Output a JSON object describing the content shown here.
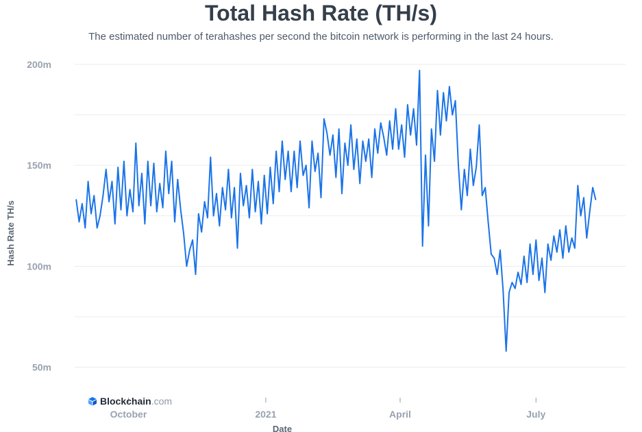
{
  "header": {
    "title": "Total Hash Rate (TH/s)",
    "subtitle": "The estimated number of terahashes per second the bitcoin network is performing in the last 24 hours."
  },
  "brand": {
    "name": "Blockchain",
    "suffix": ".com",
    "logo_icon": "blockchain-cube-icon"
  },
  "colors": {
    "line": "#1a73e8",
    "grid": "#e9ecef",
    "tick": "#98a2af"
  },
  "chart_data": {
    "type": "line",
    "title": "Total Hash Rate (TH/s)",
    "xlabel": "Date",
    "ylabel": "Hash Rate TH/s",
    "ylim": [
      40000000,
      203000000
    ],
    "xlim": [
      "2020-08-26",
      "2021-08-30"
    ],
    "y_ticks": [
      {
        "value": 50000000,
        "label": "50m"
      },
      {
        "value": 100000000,
        "label": "100m"
      },
      {
        "value": 150000000,
        "label": "150m"
      },
      {
        "value": 200000000,
        "label": "200m"
      }
    ],
    "x_ticks": [
      {
        "date": "2020-10-01",
        "label": "October"
      },
      {
        "date": "2021-01-01",
        "label": "2021"
      },
      {
        "date": "2021-04-01",
        "label": "April"
      },
      {
        "date": "2021-07-01",
        "label": "July"
      }
    ],
    "grid": true,
    "legend": "none",
    "series": [
      {
        "values": [
          [
            "2020-08-27",
            133
          ],
          [
            "2020-08-29",
            122
          ],
          [
            "2020-08-31",
            131
          ],
          [
            "2020-09-02",
            119
          ],
          [
            "2020-09-04",
            142
          ],
          [
            "2020-09-06",
            126
          ],
          [
            "2020-09-08",
            135
          ],
          [
            "2020-09-10",
            119
          ],
          [
            "2020-09-12",
            125
          ],
          [
            "2020-09-14",
            135
          ],
          [
            "2020-09-16",
            148
          ],
          [
            "2020-09-18",
            132
          ],
          [
            "2020-09-20",
            142
          ],
          [
            "2020-09-22",
            121
          ],
          [
            "2020-09-24",
            149
          ],
          [
            "2020-09-26",
            128
          ],
          [
            "2020-09-28",
            152
          ],
          [
            "2020-09-30",
            125
          ],
          [
            "2020-10-02",
            138
          ],
          [
            "2020-10-04",
            127
          ],
          [
            "2020-10-06",
            161
          ],
          [
            "2020-10-08",
            130
          ],
          [
            "2020-10-10",
            146
          ],
          [
            "2020-10-12",
            121
          ],
          [
            "2020-10-14",
            152
          ],
          [
            "2020-10-16",
            130
          ],
          [
            "2020-10-18",
            151
          ],
          [
            "2020-10-20",
            127
          ],
          [
            "2020-10-22",
            141
          ],
          [
            "2020-10-24",
            129
          ],
          [
            "2020-10-26",
            157
          ],
          [
            "2020-10-28",
            136
          ],
          [
            "2020-10-30",
            152
          ],
          [
            "2020-11-01",
            122
          ],
          [
            "2020-11-03",
            143
          ],
          [
            "2020-11-05",
            128
          ],
          [
            "2020-11-07",
            116
          ],
          [
            "2020-11-09",
            100
          ],
          [
            "2020-11-11",
            108
          ],
          [
            "2020-11-13",
            113
          ],
          [
            "2020-11-15",
            96
          ],
          [
            "2020-11-17",
            126
          ],
          [
            "2020-11-19",
            117
          ],
          [
            "2020-11-21",
            132
          ],
          [
            "2020-11-23",
            124
          ],
          [
            "2020-11-25",
            154
          ],
          [
            "2020-11-27",
            125
          ],
          [
            "2020-11-29",
            136
          ],
          [
            "2020-12-01",
            120
          ],
          [
            "2020-12-03",
            139
          ],
          [
            "2020-12-05",
            128
          ],
          [
            "2020-12-07",
            148
          ],
          [
            "2020-12-09",
            124
          ],
          [
            "2020-12-11",
            139
          ],
          [
            "2020-12-13",
            109
          ],
          [
            "2020-12-15",
            146
          ],
          [
            "2020-12-17",
            130
          ],
          [
            "2020-12-19",
            140
          ],
          [
            "2020-12-21",
            124
          ],
          [
            "2020-12-23",
            148
          ],
          [
            "2020-12-25",
            127
          ],
          [
            "2020-12-27",
            142
          ],
          [
            "2020-12-29",
            121
          ],
          [
            "2020-12-31",
            145
          ],
          [
            "2021-01-02",
            126
          ],
          [
            "2021-01-04",
            149
          ],
          [
            "2021-01-06",
            131
          ],
          [
            "2021-01-08",
            157
          ],
          [
            "2021-01-10",
            137
          ],
          [
            "2021-01-12",
            162
          ],
          [
            "2021-01-14",
            143
          ],
          [
            "2021-01-16",
            157
          ],
          [
            "2021-01-18",
            137
          ],
          [
            "2021-01-20",
            157
          ],
          [
            "2021-01-22",
            139
          ],
          [
            "2021-01-24",
            162
          ],
          [
            "2021-01-26",
            145
          ],
          [
            "2021-01-28",
            150
          ],
          [
            "2021-01-30",
            129
          ],
          [
            "2021-02-01",
            162
          ],
          [
            "2021-02-03",
            147
          ],
          [
            "2021-02-05",
            156
          ],
          [
            "2021-02-07",
            134
          ],
          [
            "2021-02-09",
            173
          ],
          [
            "2021-02-11",
            166
          ],
          [
            "2021-02-13",
            155
          ],
          [
            "2021-02-15",
            165
          ],
          [
            "2021-02-17",
            144
          ],
          [
            "2021-02-19",
            168
          ],
          [
            "2021-02-21",
            136
          ],
          [
            "2021-02-23",
            161
          ],
          [
            "2021-02-25",
            150
          ],
          [
            "2021-02-27",
            170
          ],
          [
            "2021-03-01",
            148
          ],
          [
            "2021-03-03",
            163
          ],
          [
            "2021-03-05",
            141
          ],
          [
            "2021-03-07",
            162
          ],
          [
            "2021-03-09",
            152
          ],
          [
            "2021-03-11",
            163
          ],
          [
            "2021-03-13",
            144
          ],
          [
            "2021-03-15",
            168
          ],
          [
            "2021-03-17",
            156
          ],
          [
            "2021-03-19",
            171
          ],
          [
            "2021-03-21",
            164
          ],
          [
            "2021-03-23",
            155
          ],
          [
            "2021-03-25",
            172
          ],
          [
            "2021-03-27",
            158
          ],
          [
            "2021-03-29",
            178
          ],
          [
            "2021-03-31",
            158
          ],
          [
            "2021-04-02",
            170
          ],
          [
            "2021-04-04",
            154
          ],
          [
            "2021-04-06",
            180
          ],
          [
            "2021-04-08",
            165
          ],
          [
            "2021-04-10",
            178
          ],
          [
            "2021-04-12",
            160
          ],
          [
            "2021-04-14",
            197
          ],
          [
            "2021-04-16",
            110
          ],
          [
            "2021-04-18",
            155
          ],
          [
            "2021-04-20",
            120
          ],
          [
            "2021-04-22",
            168
          ],
          [
            "2021-04-24",
            152
          ],
          [
            "2021-04-26",
            187
          ],
          [
            "2021-04-28",
            165
          ],
          [
            "2021-04-30",
            186
          ],
          [
            "2021-05-02",
            172
          ],
          [
            "2021-05-04",
            189
          ],
          [
            "2021-05-06",
            175
          ],
          [
            "2021-05-08",
            182
          ],
          [
            "2021-05-10",
            150
          ],
          [
            "2021-05-12",
            128
          ],
          [
            "2021-05-14",
            148
          ],
          [
            "2021-05-16",
            135
          ],
          [
            "2021-05-18",
            158
          ],
          [
            "2021-05-20",
            140
          ],
          [
            "2021-05-22",
            149
          ],
          [
            "2021-05-24",
            170
          ],
          [
            "2021-05-26",
            135
          ],
          [
            "2021-05-28",
            139
          ],
          [
            "2021-05-30",
            122
          ],
          [
            "2021-06-01",
            106
          ],
          [
            "2021-06-03",
            104
          ],
          [
            "2021-06-05",
            96
          ],
          [
            "2021-06-07",
            108
          ],
          [
            "2021-06-09",
            88
          ],
          [
            "2021-06-11",
            58
          ],
          [
            "2021-06-13",
            87
          ],
          [
            "2021-06-15",
            92
          ],
          [
            "2021-06-17",
            89
          ],
          [
            "2021-06-19",
            97
          ],
          [
            "2021-06-21",
            91
          ],
          [
            "2021-06-23",
            105
          ],
          [
            "2021-06-25",
            92
          ],
          [
            "2021-06-27",
            111
          ],
          [
            "2021-06-29",
            96
          ],
          [
            "2021-07-01",
            113
          ],
          [
            "2021-07-03",
            93
          ],
          [
            "2021-07-05",
            104
          ],
          [
            "2021-07-07",
            87
          ],
          [
            "2021-07-09",
            111
          ],
          [
            "2021-07-11",
            103
          ],
          [
            "2021-07-13",
            115
          ],
          [
            "2021-07-15",
            107
          ],
          [
            "2021-07-17",
            118
          ],
          [
            "2021-07-19",
            104
          ],
          [
            "2021-07-21",
            120
          ],
          [
            "2021-07-23",
            107
          ],
          [
            "2021-07-25",
            114
          ],
          [
            "2021-07-27",
            109
          ],
          [
            "2021-07-29",
            140
          ],
          [
            "2021-07-31",
            125
          ],
          [
            "2021-08-02",
            134
          ],
          [
            "2021-08-04",
            114
          ],
          [
            "2021-08-06",
            127
          ],
          [
            "2021-08-08",
            139
          ],
          [
            "2021-08-10",
            133
          ]
        ]
      }
    ]
  }
}
